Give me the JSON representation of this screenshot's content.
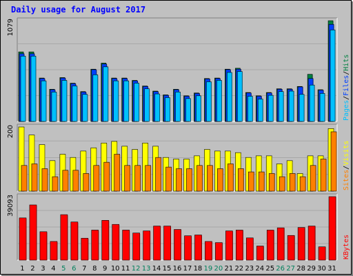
{
  "colors": {
    "background": "#c0c0c0",
    "plot_bg": "#c0c0c0",
    "pages": "#00c0ff",
    "files": "#0040ff",
    "hits": "#008040",
    "visits": "#ffff00",
    "sites": "#ff8000",
    "kbytes": "#ff0000",
    "title": "#0000ff",
    "axis_text": "#000000",
    "weekend_day": "#00805c"
  },
  "chart_data": [
    {
      "type": "bar",
      "title": "Daily usage for August 2017",
      "max_label": "1079",
      "ylim": [
        0,
        1079
      ],
      "grid": true,
      "categories": [
        "1",
        "2",
        "3",
        "4",
        "5",
        "6",
        "7",
        "8",
        "9",
        "10",
        "11",
        "12",
        "13",
        "14",
        "15",
        "16",
        "17",
        "18",
        "19",
        "20",
        "21",
        "22",
        "23",
        "24",
        "25",
        "26",
        "27",
        "28",
        "29",
        "30",
        "31"
      ],
      "series": [
        {
          "name": "Hits",
          "values": [
            745,
            745,
            465,
            345,
            470,
            410,
            320,
            560,
            625,
            465,
            465,
            440,
            380,
            325,
            285,
            345,
            275,
            305,
            460,
            465,
            560,
            570,
            310,
            275,
            310,
            350,
            350,
            375,
            505,
            340,
            1079
          ]
        },
        {
          "name": "Files",
          "values": [
            725,
            725,
            460,
            340,
            465,
            405,
            315,
            555,
            615,
            460,
            460,
            435,
            375,
            320,
            280,
            340,
            270,
            300,
            455,
            460,
            555,
            560,
            305,
            270,
            305,
            345,
            345,
            370,
            460,
            335,
            1040
          ]
        },
        {
          "name": "Pages",
          "values": [
            700,
            700,
            435,
            315,
            440,
            380,
            290,
            500,
            585,
            435,
            435,
            410,
            350,
            295,
            255,
            315,
            245,
            275,
            425,
            440,
            525,
            535,
            270,
            240,
            280,
            320,
            325,
            290,
            390,
            300,
            980
          ]
        }
      ],
      "legend_labels": [
        "Pages",
        "/",
        "Files",
        "/",
        "Hits"
      ]
    },
    {
      "type": "bar",
      "max_label": "200",
      "ylim": [
        0,
        200
      ],
      "grid": true,
      "categories": [
        "1",
        "2",
        "3",
        "4",
        "5",
        "6",
        "7",
        "8",
        "9",
        "10",
        "11",
        "12",
        "13",
        "14",
        "15",
        "16",
        "17",
        "18",
        "19",
        "20",
        "21",
        "22",
        "23",
        "24",
        "25",
        "26",
        "27",
        "28",
        "29",
        "30",
        "31"
      ],
      "series": [
        {
          "name": "Visits",
          "values": [
            200,
            175,
            145,
            95,
            115,
            105,
            125,
            135,
            150,
            155,
            140,
            130,
            150,
            140,
            105,
            100,
            100,
            110,
            130,
            125,
            125,
            120,
            105,
            110,
            110,
            85,
            95,
            55,
            110,
            110,
            195
          ]
        },
        {
          "name": "Sites",
          "values": [
            80,
            85,
            70,
            45,
            65,
            65,
            55,
            80,
            90,
            115,
            80,
            80,
            80,
            105,
            75,
            70,
            70,
            80,
            80,
            70,
            85,
            70,
            60,
            60,
            55,
            45,
            55,
            45,
            80,
            100,
            185
          ]
        }
      ],
      "legend_labels": [
        "Sites",
        "/",
        "Visits"
      ]
    },
    {
      "type": "bar",
      "max_label": "39093",
      "ylim": [
        0,
        39093
      ],
      "grid": true,
      "categories": [
        "1",
        "2",
        "3",
        "4",
        "5",
        "6",
        "7",
        "8",
        "9",
        "10",
        "11",
        "12",
        "13",
        "14",
        "15",
        "16",
        "17",
        "18",
        "19",
        "20",
        "21",
        "22",
        "23",
        "24",
        "25",
        "26",
        "27",
        "28",
        "29",
        "30",
        "31"
      ],
      "series": [
        {
          "name": "KBytes",
          "values": [
            26000,
            34000,
            17500,
            11500,
            28000,
            23500,
            13500,
            18500,
            24500,
            22000,
            18500,
            16700,
            18000,
            21000,
            21000,
            18900,
            15000,
            15500,
            11500,
            10800,
            18000,
            18500,
            13700,
            8700,
            18500,
            19900,
            15200,
            20100,
            21000,
            8200,
            39093
          ]
        }
      ],
      "legend_labels": [
        "KBytes"
      ]
    }
  ],
  "weekend_days": [
    "5",
    "6",
    "12",
    "13",
    "19",
    "20",
    "26",
    "27"
  ]
}
